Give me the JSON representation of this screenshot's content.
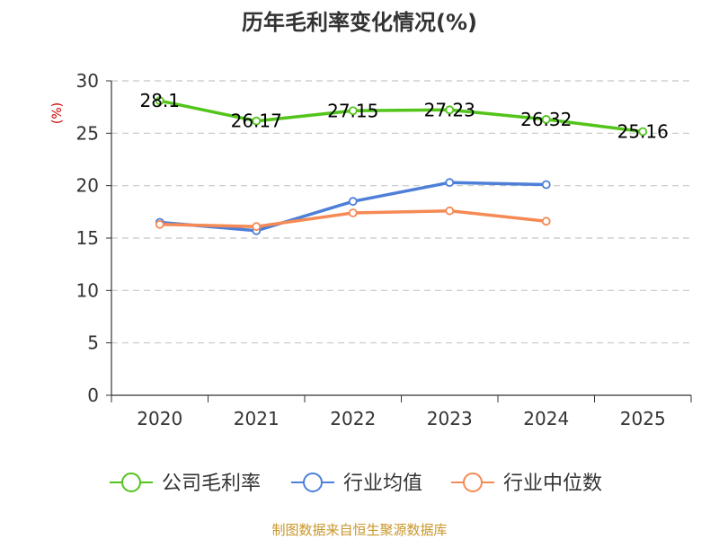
{
  "chart_data": {
    "type": "line",
    "title": "历年毛利率变化情况(%)",
    "ylabel": "(%)",
    "ylabel_color": "#cc0000",
    "categories": [
      "2020",
      "2021",
      "2022",
      "2023",
      "2024",
      "2025"
    ],
    "yticks": [
      "0",
      "5",
      "10",
      "15",
      "20",
      "25",
      "30"
    ],
    "ylim": [
      0,
      30
    ],
    "grid": true,
    "legend_position": "bottom",
    "series": [
      {
        "name": "公司毛利率",
        "color": "#52c41a",
        "values": [
          28.1,
          26.17,
          27.15,
          27.23,
          26.32,
          25.16
        ],
        "labels": [
          "28.1",
          "26.17",
          "27.15",
          "27.23",
          "26.32",
          "25.16"
        ]
      },
      {
        "name": "行业均值",
        "color": "#4e7fd8",
        "values": [
          16.5,
          15.7,
          18.5,
          20.3,
          20.1,
          null
        ],
        "labels": []
      },
      {
        "name": "行业中位数",
        "color": "#f58a55",
        "values": [
          16.3,
          16.1,
          17.4,
          17.6,
          16.6,
          null
        ],
        "labels": []
      }
    ]
  },
  "source_text": "制图数据来自恒生聚源数据库",
  "source_color": "#c8962a"
}
